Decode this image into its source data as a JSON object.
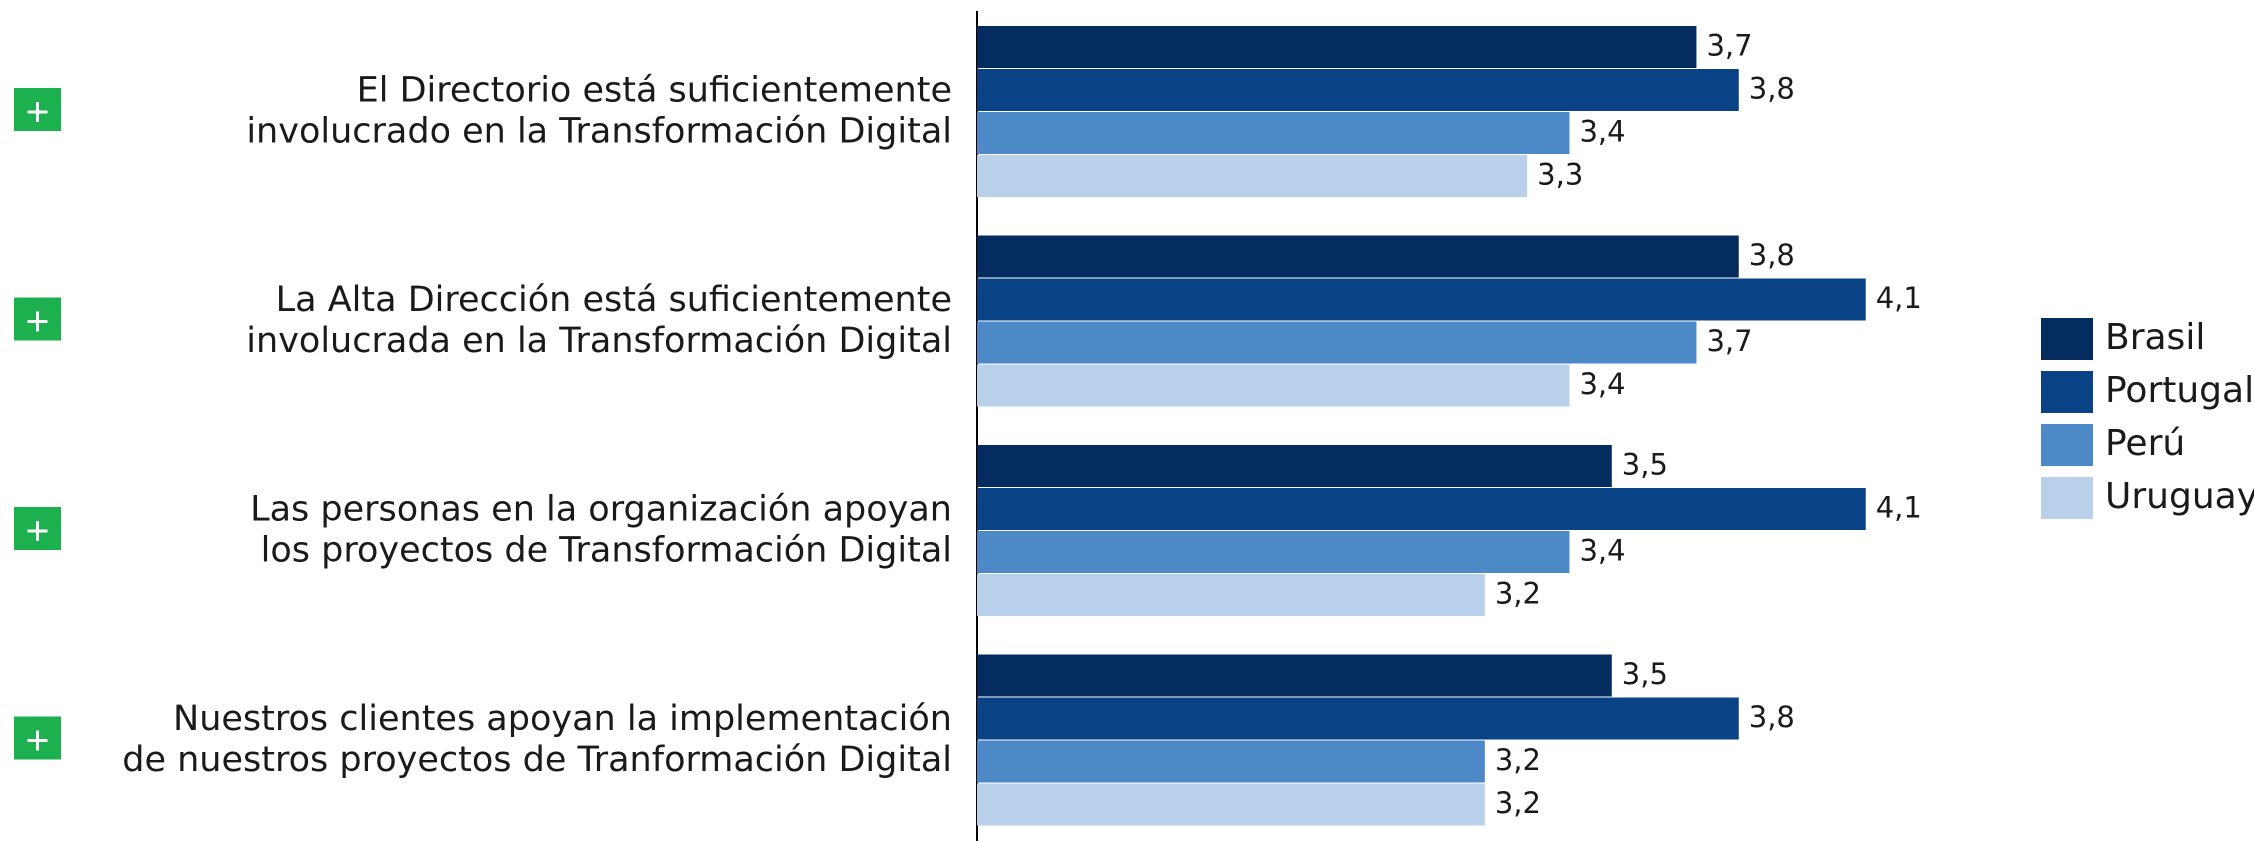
{
  "chart_data": {
    "type": "bar",
    "orientation": "horizontal",
    "categories": [
      [
        "El Directorio está suficientemente",
        "involucrado en la Transformación Digital"
      ],
      [
        "La Alta Dirección está suficientemente",
        "involucrada en la Transformación Digital"
      ],
      [
        "Las personas en la organización apoyan",
        "los proyectos de Transformación Digital"
      ],
      [
        "Nuestros clientes apoyan la implementación",
        "de nuestros proyectos de Tranformación Digital"
      ]
    ],
    "series": [
      {
        "name": "Brasil",
        "color": "#052c5e",
        "values": [
          3.7,
          3.8,
          3.5,
          3.5
        ],
        "value_labels": [
          "3,7",
          "3,8",
          "3,5",
          "3,5"
        ]
      },
      {
        "name": "Portugal",
        "color": "#0a4286",
        "values": [
          3.8,
          4.1,
          4.1,
          3.8
        ],
        "value_labels": [
          "3,8",
          "4,1",
          "4,1",
          "3,8"
        ]
      },
      {
        "name": "Perú",
        "color": "#4d88c7",
        "values": [
          3.4,
          3.7,
          3.4,
          3.2
        ],
        "value_labels": [
          "3,4",
          "3,7",
          "3,4",
          "3,2"
        ]
      },
      {
        "name": "Uruguay",
        "color": "#b8d0e9",
        "values": [
          3.3,
          3.4,
          3.2,
          3.2
        ],
        "value_labels": [
          "3,3",
          "3,4",
          "3,2",
          "3,2"
        ]
      }
    ],
    "xlim": [
      2,
      4.5
    ],
    "legend": "right"
  }
}
